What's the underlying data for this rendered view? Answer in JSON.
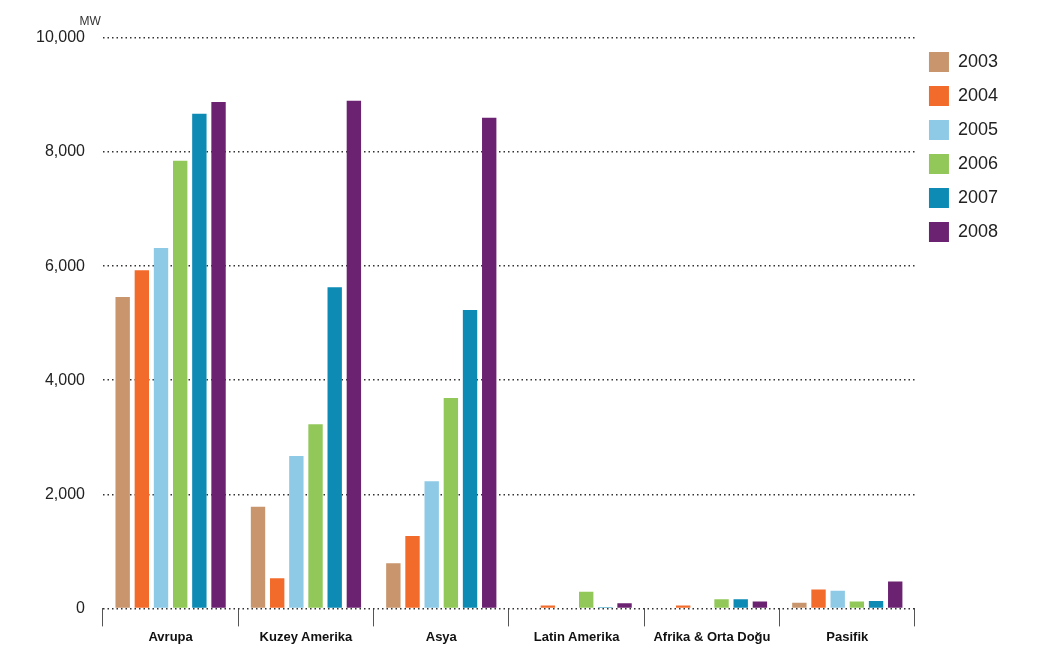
{
  "chart_data": {
    "type": "bar",
    "ylabel": "MW",
    "categories": [
      "Avrupa",
      "Kuzey Amerika",
      "Asya",
      "Latin Amerika",
      "Afrika & Orta Doğu",
      "Pasifik"
    ],
    "series": [
      {
        "name": "2003",
        "color": "#c8956c",
        "values": [
          5460,
          1780,
          790,
          0,
          0,
          100
        ]
      },
      {
        "name": "2004",
        "color": "#f26b2b",
        "values": [
          5930,
          530,
          1270,
          50,
          50,
          330
        ]
      },
      {
        "name": "2005",
        "color": "#8ecae6",
        "values": [
          6320,
          2670,
          2230,
          0,
          0,
          310
        ]
      },
      {
        "name": "2006",
        "color": "#92c85a",
        "values": [
          7850,
          3230,
          3690,
          290,
          160,
          120
        ]
      },
      {
        "name": "2007",
        "color": "#0d8bb5",
        "values": [
          8670,
          5630,
          5230,
          20,
          160,
          130
        ]
      },
      {
        "name": "2008",
        "color": "#6b2371",
        "values": [
          8880,
          8900,
          8600,
          90,
          120,
          470
        ]
      }
    ],
    "ylim": [
      0,
      10000
    ],
    "yticks": [
      {
        "value": 0,
        "label": "0"
      },
      {
        "value": 2000,
        "label": "2,000"
      },
      {
        "value": 4000,
        "label": "4,000"
      },
      {
        "value": 6000,
        "label": "6,000"
      },
      {
        "value": 8000,
        "label": "8,000"
      },
      {
        "value": 10000,
        "label": "10,000"
      }
    ],
    "grid": "y",
    "legend": "top right"
  }
}
